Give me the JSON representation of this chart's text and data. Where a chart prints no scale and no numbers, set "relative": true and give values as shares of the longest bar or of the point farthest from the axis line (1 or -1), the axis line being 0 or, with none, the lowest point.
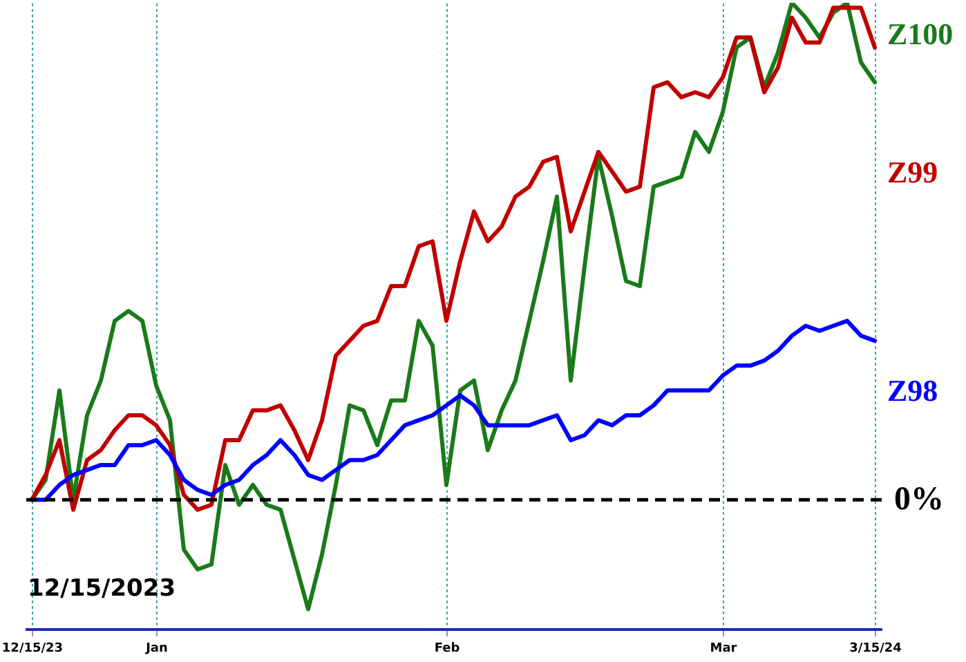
{
  "chart_data": {
    "type": "line",
    "relative": true,
    "categories": [
      "12/15/23",
      null,
      null,
      null,
      null,
      null,
      null,
      null,
      null,
      "Jan",
      null,
      null,
      null,
      null,
      null,
      null,
      null,
      null,
      null,
      null,
      null,
      null,
      null,
      null,
      null,
      null,
      null,
      null,
      null,
      null,
      "Feb",
      null,
      null,
      null,
      null,
      null,
      null,
      null,
      null,
      null,
      null,
      null,
      null,
      null,
      null,
      null,
      null,
      null,
      null,
      null,
      "Mar",
      null,
      null,
      null,
      null,
      null,
      null,
      null,
      null,
      null,
      null,
      "3/15/24"
    ],
    "series": [
      {
        "name": "Z100",
        "color": "#1a7a1a",
        "values": [
          0,
          0.04,
          0.22,
          0.0,
          0.17,
          0.24,
          0.36,
          0.38,
          0.36,
          0.23,
          0.16,
          -0.1,
          -0.14,
          -0.13,
          0.07,
          -0.01,
          0.03,
          -0.01,
          -0.02,
          -0.12,
          -0.22,
          -0.11,
          0.03,
          0.19,
          0.18,
          0.11,
          0.2,
          0.2,
          0.36,
          0.31,
          0.03,
          0.22,
          0.24,
          0.1,
          0.18,
          0.24,
          0.36,
          0.48,
          0.61,
          0.24,
          0.47,
          0.69,
          0.57,
          0.44,
          0.43,
          0.63,
          0.64,
          0.65,
          0.74,
          0.7,
          0.78,
          0.91,
          0.93,
          0.83,
          0.9,
          1.0,
          0.97,
          0.93,
          0.98,
          1.0,
          0.88,
          0.84
        ]
      },
      {
        "name": "Z99",
        "color": "#c00000",
        "values": [
          0,
          0.05,
          0.12,
          -0.02,
          0.08,
          0.1,
          0.14,
          0.17,
          0.17,
          0.15,
          0.11,
          0.01,
          -0.02,
          -0.01,
          0.12,
          0.12,
          0.18,
          0.18,
          0.19,
          0.14,
          0.08,
          0.16,
          0.29,
          0.32,
          0.35,
          0.36,
          0.43,
          0.43,
          0.51,
          0.52,
          0.36,
          0.48,
          0.58,
          0.52,
          0.55,
          0.61,
          0.63,
          0.68,
          0.69,
          0.54,
          0.62,
          0.7,
          0.66,
          0.62,
          0.63,
          0.83,
          0.84,
          0.81,
          0.82,
          0.81,
          0.85,
          0.93,
          0.93,
          0.82,
          0.87,
          0.97,
          0.92,
          0.92,
          0.99,
          0.99,
          0.99,
          0.91
        ]
      },
      {
        "name": "Z98",
        "color": "#0000ff",
        "values": [
          0,
          0.0,
          0.03,
          0.05,
          0.06,
          0.07,
          0.07,
          0.11,
          0.11,
          0.12,
          0.09,
          0.04,
          0.02,
          0.01,
          0.03,
          0.04,
          0.07,
          0.09,
          0.12,
          0.09,
          0.05,
          0.04,
          0.06,
          0.08,
          0.08,
          0.09,
          0.12,
          0.15,
          0.16,
          0.17,
          0.19,
          0.21,
          0.19,
          0.15,
          0.15,
          0.15,
          0.15,
          0.16,
          0.17,
          0.12,
          0.13,
          0.16,
          0.15,
          0.17,
          0.17,
          0.19,
          0.22,
          0.22,
          0.22,
          0.22,
          0.25,
          0.27,
          0.27,
          0.28,
          0.3,
          0.33,
          0.35,
          0.34,
          0.35,
          0.36,
          0.33,
          0.32
        ]
      }
    ],
    "ref_lines": [
      {
        "axis": "y",
        "value": 0,
        "label": "0%",
        "color": "#000000",
        "line_style": "dashed"
      }
    ],
    "annotations": [
      "12/15/2023"
    ],
    "grid": "x",
    "line_style": "solid"
  }
}
